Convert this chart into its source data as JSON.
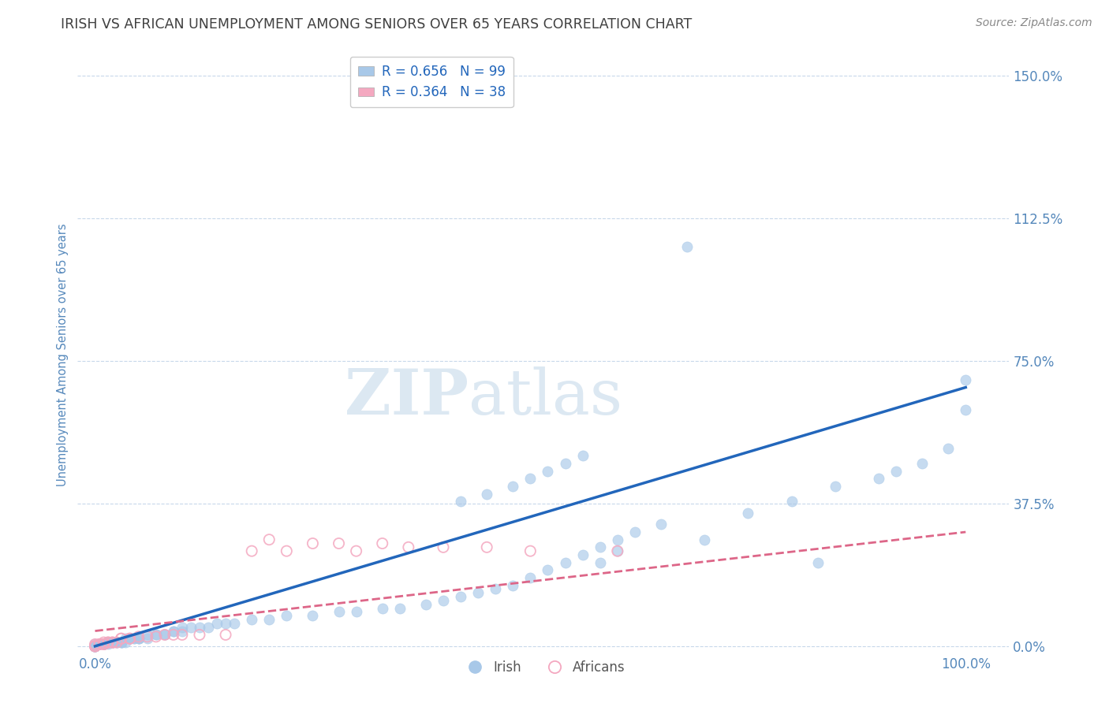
{
  "title": "IRISH VS AFRICAN UNEMPLOYMENT AMONG SENIORS OVER 65 YEARS CORRELATION CHART",
  "source": "Source: ZipAtlas.com",
  "ylabel": "Unemployment Among Seniors over 65 years",
  "xlim": [
    -0.02,
    1.05
  ],
  "ylim": [
    -0.02,
    1.55
  ],
  "xtick_labels": [
    "0.0%",
    "100.0%"
  ],
  "xtick_positions": [
    0.0,
    1.0
  ],
  "ytick_labels": [
    "0.0%",
    "37.5%",
    "75.0%",
    "112.5%",
    "150.0%"
  ],
  "ytick_positions": [
    0.0,
    0.375,
    0.75,
    1.125,
    1.5
  ],
  "irish_R": 0.656,
  "irish_N": 99,
  "african_R": 0.364,
  "african_N": 38,
  "irish_color": "#a8c8e8",
  "african_color": "#f4a8c0",
  "irish_line_color": "#2266bb",
  "african_line_color": "#dd6688",
  "background_color": "#ffffff",
  "grid_color": "#c8d8ea",
  "title_color": "#404040",
  "axis_color": "#5588bb",
  "watermark_color": "#dce8f2",
  "legend_text_color": "#333333",
  "legend_val_color": "#2266bb",
  "source_color": "#888888",
  "irish_scatter_x": [
    0.0,
    0.0,
    0.0,
    0.0,
    0.0,
    0.0,
    0.0,
    0.0,
    0.0,
    0.0,
    0.005,
    0.005,
    0.005,
    0.005,
    0.005,
    0.01,
    0.01,
    0.01,
    0.01,
    0.01,
    0.015,
    0.015,
    0.015,
    0.02,
    0.02,
    0.02,
    0.025,
    0.025,
    0.03,
    0.03,
    0.03,
    0.035,
    0.035,
    0.04,
    0.04,
    0.045,
    0.045,
    0.05,
    0.05,
    0.05,
    0.06,
    0.06,
    0.07,
    0.07,
    0.08,
    0.08,
    0.09,
    0.09,
    0.1,
    0.1,
    0.11,
    0.12,
    0.13,
    0.14,
    0.15,
    0.16,
    0.18,
    0.2,
    0.22,
    0.25,
    0.28,
    0.3,
    0.33,
    0.35,
    0.38,
    0.4,
    0.42,
    0.44,
    0.46,
    0.48,
    0.5,
    0.52,
    0.54,
    0.56,
    0.58,
    0.6,
    0.62,
    0.65,
    0.68,
    0.7,
    0.75,
    0.8,
    0.83,
    0.85,
    0.9,
    0.92,
    0.95,
    0.98,
    1.0,
    1.0,
    0.42,
    0.45,
    0.48,
    0.5,
    0.52,
    0.54,
    0.56,
    0.58,
    0.6
  ],
  "irish_scatter_y": [
    0.0,
    0.0,
    0.0,
    0.0,
    0.0,
    0.0,
    0.0,
    0.0,
    0.0,
    0.005,
    0.005,
    0.005,
    0.005,
    0.005,
    0.005,
    0.005,
    0.005,
    0.005,
    0.005,
    0.005,
    0.005,
    0.01,
    0.01,
    0.01,
    0.01,
    0.01,
    0.01,
    0.01,
    0.01,
    0.01,
    0.01,
    0.01,
    0.02,
    0.02,
    0.02,
    0.02,
    0.02,
    0.02,
    0.02,
    0.02,
    0.02,
    0.03,
    0.03,
    0.03,
    0.03,
    0.03,
    0.04,
    0.04,
    0.04,
    0.05,
    0.05,
    0.05,
    0.05,
    0.06,
    0.06,
    0.06,
    0.07,
    0.07,
    0.08,
    0.08,
    0.09,
    0.09,
    0.1,
    0.1,
    0.11,
    0.12,
    0.13,
    0.14,
    0.15,
    0.16,
    0.18,
    0.2,
    0.22,
    0.24,
    0.26,
    0.28,
    0.3,
    0.32,
    1.05,
    0.28,
    0.35,
    0.38,
    0.22,
    0.42,
    0.44,
    0.46,
    0.48,
    0.52,
    0.62,
    0.7,
    0.38,
    0.4,
    0.42,
    0.44,
    0.46,
    0.48,
    0.5,
    0.22,
    0.25
  ],
  "african_scatter_x": [
    0.0,
    0.0,
    0.0,
    0.0,
    0.005,
    0.005,
    0.01,
    0.01,
    0.01,
    0.015,
    0.015,
    0.02,
    0.02,
    0.025,
    0.03,
    0.03,
    0.04,
    0.04,
    0.05,
    0.06,
    0.07,
    0.08,
    0.09,
    0.1,
    0.12,
    0.15,
    0.18,
    0.2,
    0.22,
    0.25,
    0.28,
    0.3,
    0.33,
    0.36,
    0.4,
    0.45,
    0.5,
    0.6
  ],
  "african_scatter_y": [
    0.0,
    0.0,
    0.0,
    0.005,
    0.005,
    0.005,
    0.005,
    0.005,
    0.01,
    0.01,
    0.01,
    0.01,
    0.01,
    0.01,
    0.02,
    0.02,
    0.02,
    0.02,
    0.025,
    0.025,
    0.025,
    0.03,
    0.03,
    0.03,
    0.03,
    0.03,
    0.25,
    0.28,
    0.25,
    0.27,
    0.27,
    0.25,
    0.27,
    0.26,
    0.26,
    0.26,
    0.25,
    0.25
  ],
  "irish_line_x": [
    0.0,
    1.0
  ],
  "irish_line_y": [
    0.0,
    0.68
  ],
  "african_line_x": [
    0.0,
    1.0
  ],
  "african_line_y": [
    0.04,
    0.3
  ]
}
